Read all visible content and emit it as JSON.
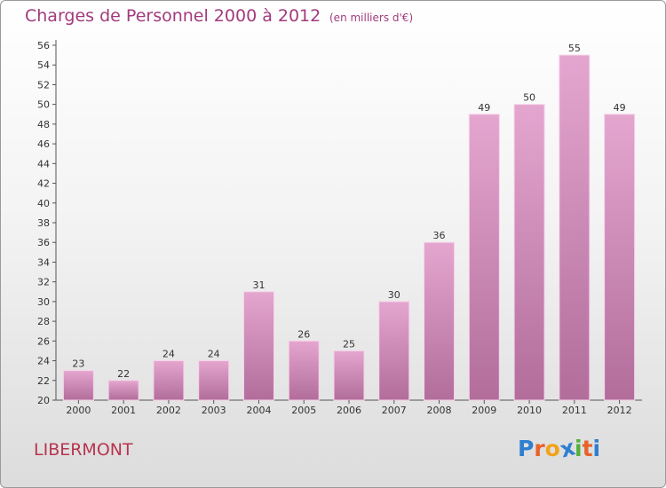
{
  "header": {
    "title": "Charges de Personnel 2000 à 2012",
    "subtitle": "(en milliers d'€)"
  },
  "footer": {
    "commune": "LIBERMONT",
    "logo_text": "Proxiti"
  },
  "colors": {
    "title": "#a23a7c",
    "commune": "#b8344f",
    "bar_top": "#e4a6cf",
    "bar_bottom": "#b26d9b",
    "logo": [
      "#2e7fd0",
      "#e8622a",
      "#f2a31b",
      "#2e7fd0",
      "#52b03b",
      "#e8622a",
      "#2e7fd0"
    ]
  },
  "chart_data": {
    "type": "bar",
    "categories": [
      "2000",
      "2001",
      "2002",
      "2003",
      "2004",
      "2005",
      "2006",
      "2007",
      "2008",
      "2009",
      "2010",
      "2011",
      "2012"
    ],
    "values": [
      23,
      22,
      24,
      24,
      31,
      26,
      25,
      30,
      36,
      49,
      50,
      55,
      49
    ],
    "data_labels": [
      "23",
      "22",
      "24",
      "24",
      "31",
      "26",
      "25",
      "30",
      "36",
      "49",
      "50",
      "55",
      "49"
    ],
    "yticks": [
      "20",
      "22",
      "24",
      "26",
      "28",
      "30",
      "32",
      "34",
      "36",
      "38",
      "40",
      "42",
      "44",
      "46",
      "48",
      "50",
      "52",
      "54",
      "56"
    ],
    "ylim": [
      20,
      56
    ],
    "grid": false,
    "legend": "none",
    "title": "Charges de Personnel 2000 à 2012",
    "xlabel": "",
    "ylabel": ""
  }
}
